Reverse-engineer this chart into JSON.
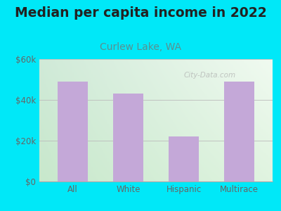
{
  "title": "Median per capita income in 2022",
  "subtitle": "Curlew Lake, WA",
  "categories": [
    "All",
    "White",
    "Hispanic",
    "Multirace"
  ],
  "values": [
    49000,
    43000,
    22000,
    49000
  ],
  "bar_color": "#c4a8d8",
  "background_outer": "#00e8f8",
  "grad_top_left": "#d8eecc",
  "grad_top_right": "#eef8e8",
  "grad_bottom_right": "#d8eedd",
  "ylim": [
    0,
    60000
  ],
  "yticks": [
    0,
    20000,
    40000,
    60000
  ],
  "ytick_labels": [
    "$0",
    "$20k",
    "$40k",
    "$60k"
  ],
  "title_fontsize": 13.5,
  "subtitle_fontsize": 10,
  "subtitle_color": "#5a9090",
  "tick_color": "#666666",
  "watermark": "City-Data.com"
}
